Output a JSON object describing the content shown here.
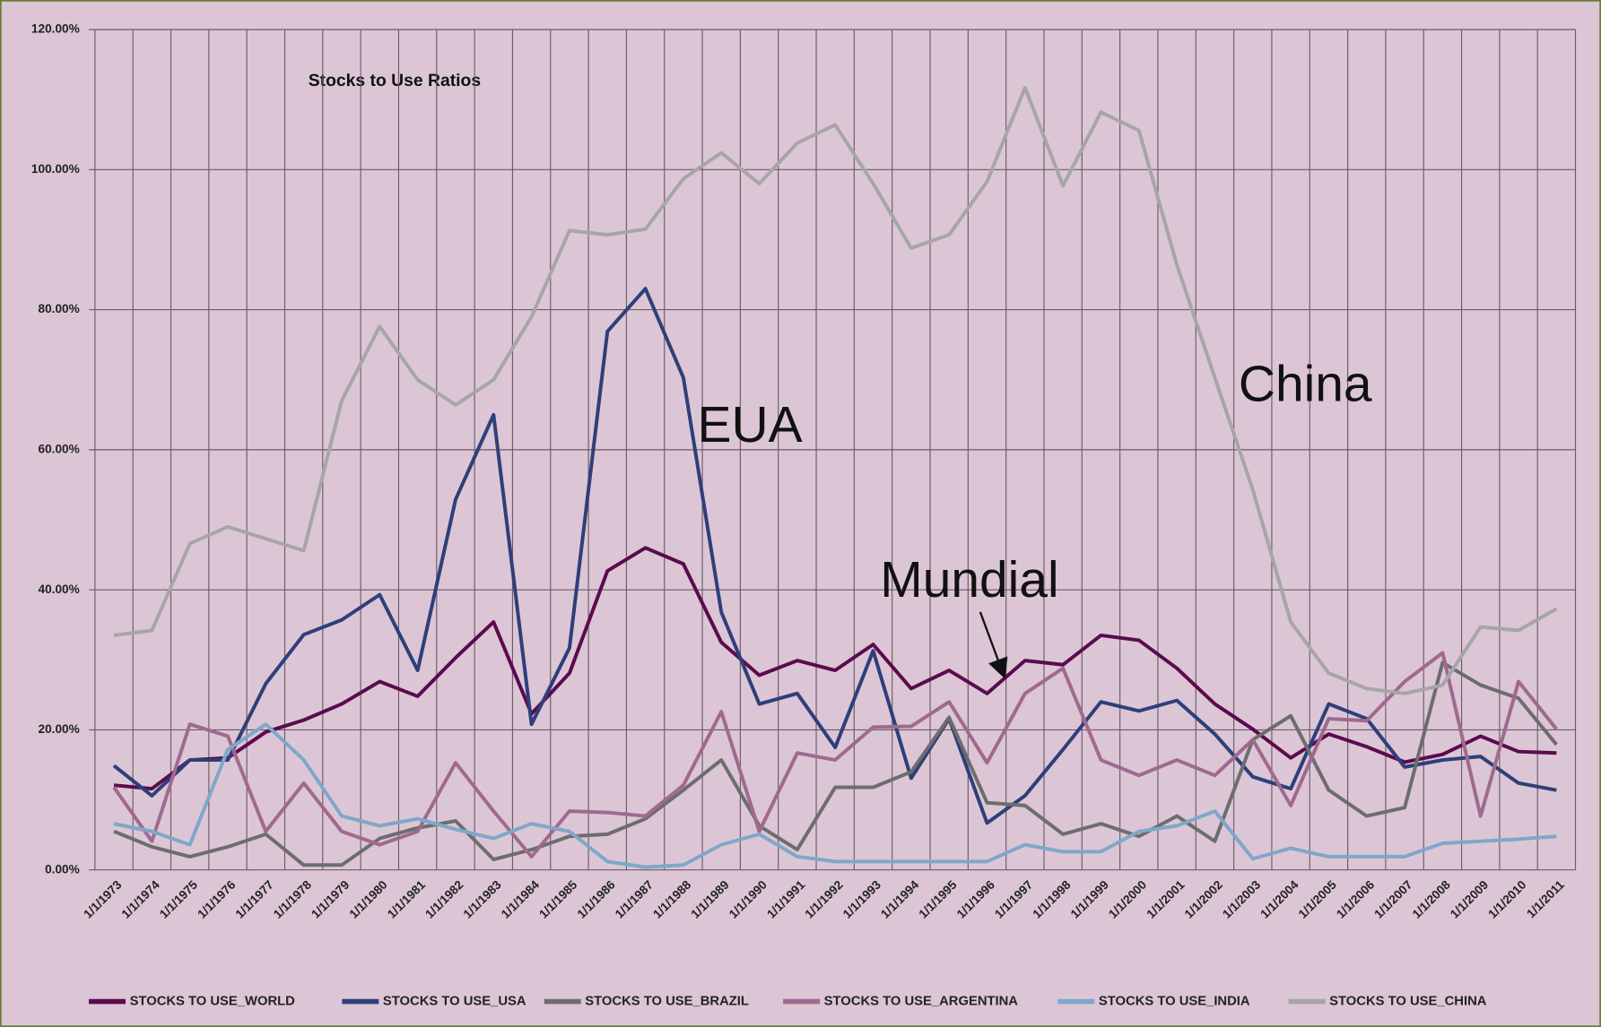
{
  "chart_data": {
    "type": "line",
    "title": "Stocks to Use Ratios",
    "annotations": [
      "EUA",
      "China",
      "Mundial"
    ],
    "categories": [
      "1/1/1973",
      "1/1/1974",
      "1/1/1975",
      "1/1/1976",
      "1/1/1977",
      "1/1/1978",
      "1/1/1979",
      "1/1/1980",
      "1/1/1981",
      "1/1/1982",
      "1/1/1983",
      "1/1/1984",
      "1/1/1985",
      "1/1/1986",
      "1/1/1987",
      "1/1/1988",
      "1/1/1989",
      "1/1/1990",
      "1/1/1991",
      "1/1/1992",
      "1/1/1993",
      "1/1/1994",
      "1/1/1995",
      "1/1/1996",
      "1/1/1997",
      "1/1/1998",
      "1/1/1999",
      "1/1/2000",
      "1/1/2001",
      "1/1/2002",
      "1/1/2003",
      "1/1/2004",
      "1/1/2005",
      "1/1/2006",
      "1/1/2007",
      "1/1/2008",
      "1/1/2009",
      "1/1/2010",
      "1/1/2011"
    ],
    "series": [
      {
        "name": "STOCKS TO USE_WORLD",
        "color": "#5c0a4e",
        "values": [
          12.1,
          11.6,
          15.7,
          16,
          19.7,
          21.4,
          23.7,
          26.9,
          24.8,
          30.3,
          35.4,
          22.3,
          28.1,
          42.7,
          46,
          43.7,
          32.5,
          27.8,
          29.9,
          28.5,
          32.2,
          25.9,
          28.5,
          25.2,
          29.9,
          29.3,
          33.5,
          32.8,
          28.8,
          23.7,
          20.1,
          16,
          19.4,
          17.6,
          15.4,
          16.5,
          19.1,
          16.9,
          16.7
        ]
      },
      {
        "name": "STOCKS TO USE_USA",
        "color": "#2e3f7a",
        "values": [
          14.9,
          10.6,
          15.7,
          15.7,
          26.6,
          33.6,
          35.7,
          39.3,
          28.5,
          52.9,
          65,
          20.8,
          31.7,
          76.9,
          83,
          70.3,
          36.8,
          23.7,
          25.2,
          17.5,
          31.3,
          13.1,
          21.6,
          6.7,
          10.6,
          17.2,
          24,
          22.7,
          24.2,
          19.4,
          13.3,
          11.6,
          23.7,
          21.6,
          14.7,
          15.7,
          16.2,
          12.4,
          11.4
        ]
      },
      {
        "name": "STOCKS TO USE_BRAZIL",
        "color": "#6d6d6d",
        "values": [
          5.5,
          3.3,
          1.9,
          3.3,
          5.1,
          0.7,
          0.7,
          4.5,
          6,
          7,
          1.5,
          2.9,
          4.8,
          5.1,
          7.3,
          11.4,
          15.7,
          6.3,
          2.9,
          11.8,
          11.8,
          14,
          21.8,
          9.6,
          9.2,
          5.1,
          6.6,
          4.8,
          7.7,
          4.1,
          18.6,
          22,
          11.4,
          7.7,
          8.9,
          29.6,
          26.4,
          24.5,
          17.9
        ]
      },
      {
        "name": "STOCKS TO USE_ARGENTINA",
        "color": "#a0698f",
        "values": [
          11.8,
          4.1,
          20.8,
          19.1,
          5.5,
          12.4,
          5.5,
          3.6,
          5.5,
          15.3,
          8.4,
          1.9,
          8.4,
          8.2,
          7.7,
          12.1,
          22.6,
          5.5,
          16.7,
          15.7,
          20.4,
          20.5,
          24,
          15.3,
          25.2,
          28.8,
          15.7,
          13.5,
          15.7,
          13.5,
          18.6,
          9.2,
          21.6,
          21.3,
          26.9,
          31,
          7.7,
          26.9,
          20.1
        ]
      },
      {
        "name": "STOCKS TO USE_INDIA",
        "color": "#7fa7c9",
        "values": [
          6.6,
          5.5,
          3.6,
          17.2,
          20.8,
          15.7,
          7.7,
          6.3,
          7.3,
          5.8,
          4.5,
          6.6,
          5.5,
          1.2,
          0.4,
          0.7,
          3.6,
          5.1,
          1.9,
          1.2,
          1.2,
          1.2,
          1.2,
          1.2,
          3.6,
          2.6,
          2.6,
          5.5,
          6.3,
          8.4,
          1.6,
          3.1,
          1.9,
          1.9,
          1.9,
          3.8,
          4.1,
          4.4,
          4.8
        ]
      },
      {
        "name": "STOCKS TO USE_CHINA",
        "color": "#a6a6a6",
        "values": [
          33.5,
          34.2,
          46.6,
          49,
          47.3,
          45.6,
          67,
          77.6,
          70,
          66.4,
          70,
          79,
          91.3,
          90.7,
          91.5,
          98.7,
          102.4,
          98,
          103.8,
          106.4,
          98,
          88.8,
          90.7,
          98.3,
          111.7,
          97.7,
          108.2,
          105.6,
          86.4,
          70.3,
          54.3,
          35.4,
          28.1,
          25.9,
          25.2,
          26.4,
          34.7,
          34.2,
          37.3
        ]
      }
    ],
    "ylim": [
      0,
      120
    ],
    "yticks": [
      {
        "value": 0,
        "label": "0.00%"
      },
      {
        "value": 20,
        "label": "20.00%"
      },
      {
        "value": 40,
        "label": "40.00%"
      },
      {
        "value": 60,
        "label": "60.00%"
      },
      {
        "value": 80,
        "label": "80.00%"
      },
      {
        "value": 100,
        "label": "100.00%"
      },
      {
        "value": 120,
        "label": "120.00%"
      }
    ],
    "grid": true,
    "legend": "bottom"
  }
}
